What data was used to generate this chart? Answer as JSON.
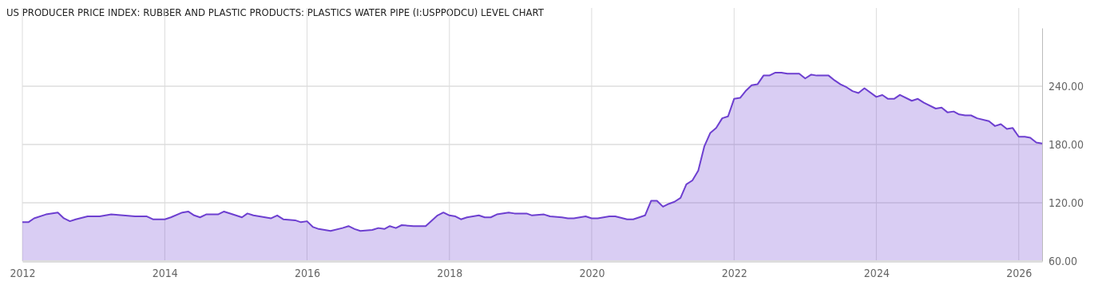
{
  "chart_data": {
    "type": "area",
    "title": "US PRODUCER PRICE INDEX: RUBBER AND PLASTIC PRODUCTS: PLASTICS WATER PIPE (I:USPPODCU) LEVEL CHART",
    "x": [
      "2012-01",
      "2012-02",
      "2012-03",
      "2012-05",
      "2012-07",
      "2012-08",
      "2012-09",
      "2012-10",
      "2012-12",
      "2013-02",
      "2013-04",
      "2013-06",
      "2013-08",
      "2013-10",
      "2013-11",
      "2014-01",
      "2014-02",
      "2014-04",
      "2014-05",
      "2014-06",
      "2014-07",
      "2014-08",
      "2014-10",
      "2014-11",
      "2015-01",
      "2015-02",
      "2015-03",
      "2015-04",
      "2015-07",
      "2015-08",
      "2015-09",
      "2015-11",
      "2015-12",
      "2016-01",
      "2016-02",
      "2016-03",
      "2016-05",
      "2016-07",
      "2016-08",
      "2016-09",
      "2016-10",
      "2016-12",
      "2017-01",
      "2017-02",
      "2017-03",
      "2017-04",
      "2017-05",
      "2017-07",
      "2017-09",
      "2017-11",
      "2017-12",
      "2018-01",
      "2018-02",
      "2018-03",
      "2018-04",
      "2018-06",
      "2018-07",
      "2018-08",
      "2018-09",
      "2018-11",
      "2018-12",
      "2019-02",
      "2019-03",
      "2019-05",
      "2019-06",
      "2019-08",
      "2019-09",
      "2019-10",
      "2019-12",
      "2020-01",
      "2020-02",
      "2020-04",
      "2020-05",
      "2020-07",
      "2020-08",
      "2020-09",
      "2020-10",
      "2020-11",
      "2020-12",
      "2021-01",
      "2021-02",
      "2021-03",
      "2021-04",
      "2021-05",
      "2021-06",
      "2021-07",
      "2021-08",
      "2021-09",
      "2021-10",
      "2021-11",
      "2021-12",
      "2022-01",
      "2022-02",
      "2022-03",
      "2022-04",
      "2022-05",
      "2022-06",
      "2022-07",
      "2022-08",
      "2022-09",
      "2022-10",
      "2022-11",
      "2022-12",
      "2023-01",
      "2023-02",
      "2023-03",
      "2023-05",
      "2023-06",
      "2023-07",
      "2023-08",
      "2023-09",
      "2023-10",
      "2023-11",
      "2024-01",
      "2024-02",
      "2024-03",
      "2024-04",
      "2024-05",
      "2024-07",
      "2024-08",
      "2024-09",
      "2024-11",
      "2024-12",
      "2025-01",
      "2025-02",
      "2025-03",
      "2025-04",
      "2025-05",
      "2025-06",
      "2025-08",
      "2025-09",
      "2025-10",
      "2025-11",
      "2025-12",
      "2026-01",
      "2026-02",
      "2026-03",
      "2026-04",
      "2026-05"
    ],
    "series": [
      {
        "color": "#6d3fd0",
        "values": [
          100,
          100,
          104,
          108,
          110,
          104,
          101,
          103,
          106,
          106,
          108,
          107,
          106,
          106,
          103,
          103,
          105,
          110,
          111,
          107,
          105,
          108,
          108,
          111,
          107,
          105,
          109,
          107,
          104,
          107,
          103,
          102,
          100,
          101,
          95,
          93,
          91,
          94,
          96,
          93,
          91,
          92,
          94,
          93,
          96,
          94,
          97,
          96,
          96,
          107,
          110,
          107,
          106,
          103,
          105,
          107,
          105,
          105,
          108,
          110,
          109,
          109,
          107,
          108,
          106,
          105,
          104,
          104,
          106,
          104,
          104,
          106,
          106,
          103,
          103,
          105,
          107,
          122,
          122,
          116,
          119,
          121,
          125,
          139,
          143,
          153,
          178,
          192,
          197,
          207,
          209,
          227,
          228,
          235,
          241,
          242,
          251,
          251,
          254,
          254,
          253,
          253,
          253,
          248,
          252,
          251,
          251,
          246,
          242,
          239,
          235,
          233,
          238,
          229,
          231,
          227,
          227,
          231,
          225,
          227,
          223,
          217,
          218,
          213,
          214,
          211,
          210,
          210,
          207,
          204,
          199,
          201,
          196,
          197,
          188,
          188,
          187,
          182,
          181
        ]
      }
    ],
    "xlim": [
      "2012-01",
      "2026-05"
    ],
    "xticks": [
      {
        "value": "2012",
        "label": "2012"
      },
      {
        "value": "2014",
        "label": "2014"
      },
      {
        "value": "2016",
        "label": "2016"
      },
      {
        "value": "2018",
        "label": "2018"
      },
      {
        "value": "2020",
        "label": "2020"
      },
      {
        "value": "2022",
        "label": "2022"
      },
      {
        "value": "2024",
        "label": "2024"
      },
      {
        "value": "2026",
        "label": "2026"
      }
    ],
    "ylim": [
      60,
      300
    ],
    "yticks": [
      {
        "value": 60,
        "label": "60.00"
      },
      {
        "value": 120,
        "label": "120.00"
      },
      {
        "value": 180,
        "label": "180.00"
      },
      {
        "value": 240,
        "label": "240.00"
      }
    ],
    "grid": true
  }
}
